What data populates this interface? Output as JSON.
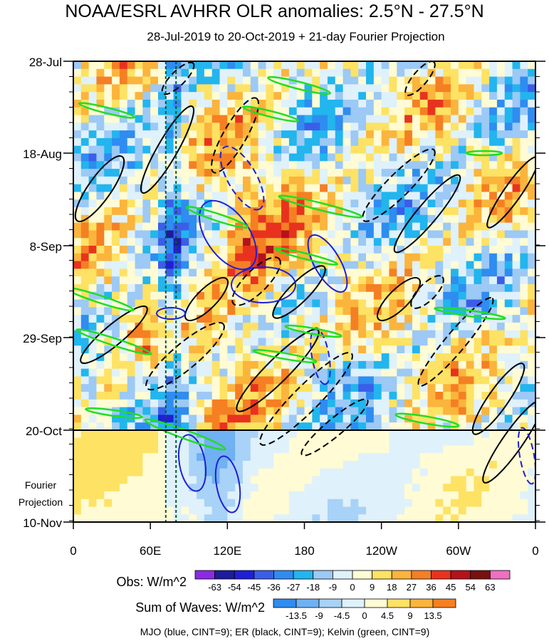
{
  "title": "NOAA/ESRL AVHRR OLR anomalies: 2.5°N - 27.5°N",
  "subtitle": "28-Jul-2019 to 20-Oct-2019 + 21-day Fourier Projection",
  "chart_data": {
    "type": "heatmap",
    "x_axis": {
      "tick_labels": [
        "0",
        "60E",
        "120E",
        "180",
        "120W",
        "60W",
        "0"
      ],
      "tick_values_deg_east": [
        0,
        60,
        120,
        180,
        240,
        300,
        360
      ]
    },
    "y_axis": {
      "tick_labels": [
        "28-Jul",
        "18-Aug",
        "8-Sep",
        "29-Sep",
        "20-Oct",
        "10-Nov"
      ],
      "direction": "time increases downward"
    },
    "projection_label": [
      "Fourier",
      "Projection"
    ],
    "projection_start": "20-Oct",
    "projection_end": "10-Nov",
    "dashed_vertical_lines_deg_east": [
      72,
      80
    ],
    "obs_colorbar": {
      "label": "Obs: W/m^2",
      "levels": [
        -63,
        -54,
        -45,
        -36,
        -27,
        -18,
        -9,
        0,
        9,
        18,
        27,
        36,
        45,
        54,
        63
      ],
      "colors": [
        "#8a2be2",
        "#1c1c9c",
        "#1f1fd6",
        "#3a5ee8",
        "#2f8cf0",
        "#22b5ee",
        "#9cc9f5",
        "#dff1fb",
        "#fffbd4",
        "#fde264",
        "#fbb43c",
        "#f57f23",
        "#e8321f",
        "#b5121b",
        "#7a1010",
        "#f06fc0"
      ]
    },
    "wave_colorbar": {
      "label": "Sum of Waves: W/m^2",
      "levels": [
        -13.5,
        -9,
        -4.5,
        0,
        4.5,
        9,
        13.5
      ],
      "colors": [
        "#2f8cf0",
        "#6fb1f2",
        "#a8d2f7",
        "#dff1fb",
        "#fffbd4",
        "#fde264",
        "#fbb43c",
        "#f57f23"
      ]
    },
    "footnote": "MJO (blue, CINT=9); ER (black, CINT=9); Kelvin (green, CINT=9)",
    "series": [
      {
        "name": "MJO",
        "color": "#1f1fd6"
      },
      {
        "name": "ER",
        "color": "#000000"
      },
      {
        "name": "Kelvin",
        "color": "#22dd22"
      }
    ]
  }
}
